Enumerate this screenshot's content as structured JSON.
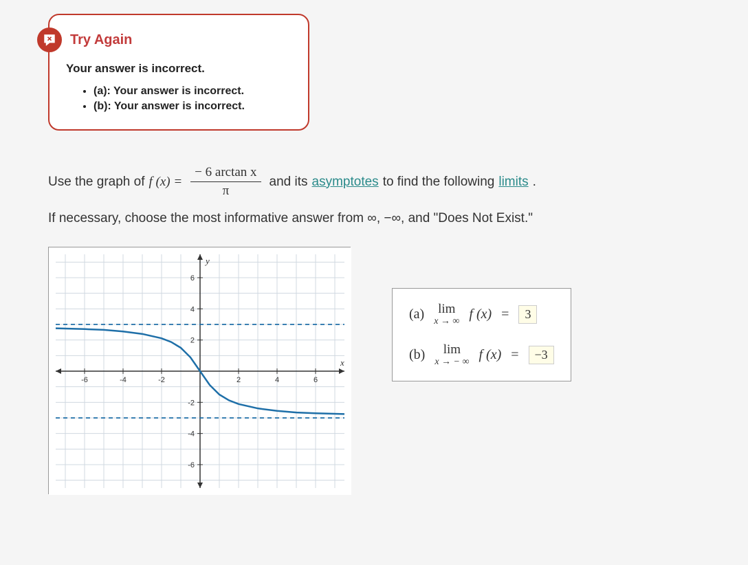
{
  "feedback": {
    "title": "Try Again",
    "message": "Your answer is incorrect.",
    "items": [
      "(a): Your answer is incorrect.",
      "(b): Your answer is incorrect."
    ]
  },
  "question": {
    "prefix": "Use the graph of",
    "func_lhs": "f (x) =",
    "numerator": "− 6 arctan x",
    "denominator": "π",
    "mid1": "and its",
    "link1": "asymptotes",
    "mid2": "to find the following",
    "link2": "limits",
    "period": ".",
    "line2_a": "If necessary, choose the most informative answer from ∞,  −∞,  and \"Does Not Exist.\""
  },
  "graph": {
    "type": "line",
    "xlim": [
      -7.5,
      7.5
    ],
    "ylim": [
      -7.5,
      7.5
    ],
    "xticks": [
      -6,
      -4,
      -2,
      2,
      4,
      6
    ],
    "yticks": [
      -6,
      -4,
      -2,
      2,
      4,
      6
    ],
    "xlabel": "x",
    "ylabel": "y",
    "background_color": "#ffffff",
    "grid_color": "#d0d8e0",
    "axis_color": "#333333",
    "curve_color": "#1e6fa8",
    "curve_width": 2.5,
    "asymptote_color": "#1e6fa8",
    "asymptote_dash": "6,5",
    "asymptotes_y": [
      3,
      -3
    ],
    "curve_points": [
      [
        -7.5,
        2.75
      ],
      [
        -6,
        2.7
      ],
      [
        -5,
        2.65
      ],
      [
        -4,
        2.55
      ],
      [
        -3,
        2.39
      ],
      [
        -2,
        2.11
      ],
      [
        -1.5,
        1.87
      ],
      [
        -1,
        1.5
      ],
      [
        -0.5,
        0.886
      ],
      [
        0,
        0
      ],
      [
        0.5,
        -0.886
      ],
      [
        1,
        -1.5
      ],
      [
        1.5,
        -1.87
      ],
      [
        2,
        -2.11
      ],
      [
        3,
        -2.39
      ],
      [
        4,
        -2.55
      ],
      [
        5,
        -2.65
      ],
      [
        6,
        -2.7
      ],
      [
        7.5,
        -2.75
      ]
    ]
  },
  "answers": {
    "a": {
      "label": "(a)",
      "lim": "lim",
      "cond": "x → ∞",
      "func": "f (x)",
      "eq": "=",
      "value": "3"
    },
    "b": {
      "label": "(b)",
      "lim": "lim",
      "cond": "x → − ∞",
      "func": "f (x)",
      "eq": "=",
      "value": "−3"
    }
  }
}
